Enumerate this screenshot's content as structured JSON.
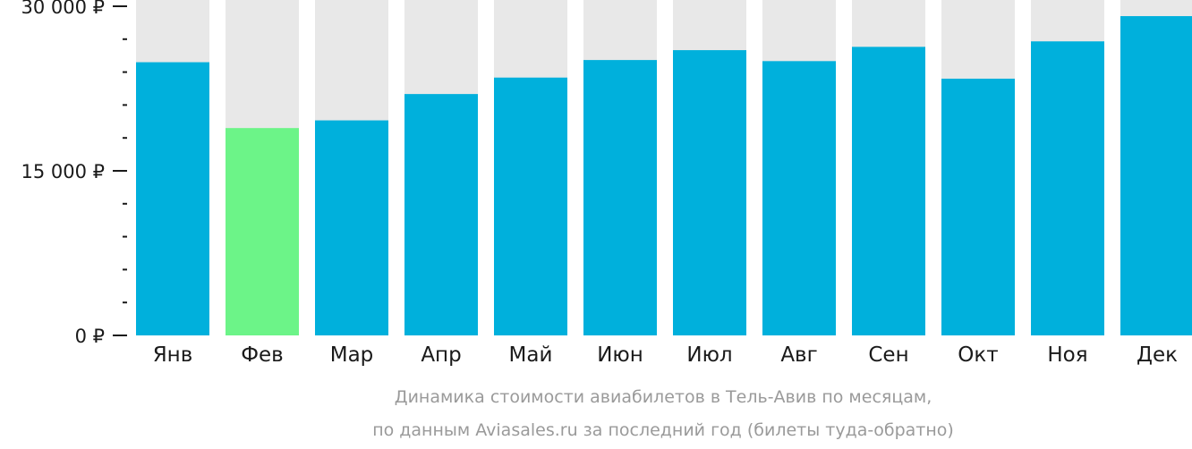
{
  "chart_data": {
    "type": "bar",
    "categories": [
      "Янв",
      "Фев",
      "Мар",
      "Апр",
      "Май",
      "Июн",
      "Июл",
      "Авг",
      "Сен",
      "Окт",
      "Ноя",
      "Дек"
    ],
    "values": [
      24900,
      18900,
      19600,
      22000,
      23500,
      25100,
      26000,
      25000,
      26300,
      23400,
      26800,
      29100
    ],
    "ylim": [
      0,
      30000
    ],
    "yticks": [
      {
        "value": 30000,
        "label": "30 000 ₽"
      },
      {
        "value": 15000,
        "label": "15 000 ₽"
      },
      {
        "value": 0,
        "label": "0 ₽"
      }
    ],
    "minor_tick_step": 3000,
    "highlight_index": 1,
    "caption": [
      "Динамика стоимости авиабилетов в Тель-Авив по месяцам,",
      "по данным Aviasales.ru за последний год (билеты туда-обратно)"
    ],
    "grid": false,
    "legend": "none"
  },
  "colors": {
    "bar": "#00b0dc",
    "bar_highlight": "#6cf488",
    "bar_background": "#e8e8e8",
    "axis": "#1a1a1a",
    "caption": "#9a9a9a"
  }
}
